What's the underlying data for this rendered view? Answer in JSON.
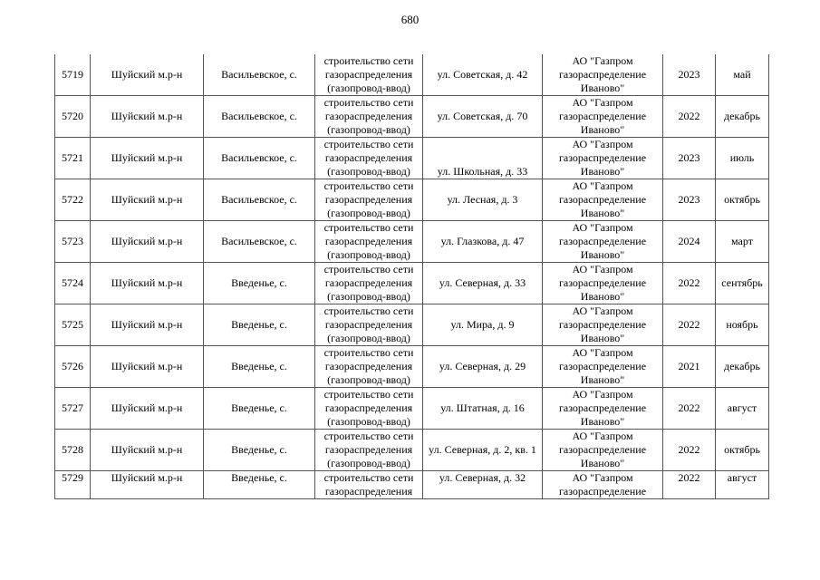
{
  "page_number": "680",
  "rows": [
    {
      "num": "5719",
      "district": "Шуйский м.р-н",
      "locality": "Васильевское, с.",
      "work": [
        "строительство сети",
        "газораспределения",
        "(газопровод-ввод)"
      ],
      "address": "ул. Советская, д. 42",
      "org": [
        "АО \"Газпром",
        "газораспределение",
        "Иваново\""
      ],
      "year": "2023",
      "month": "май"
    },
    {
      "num": "5720",
      "district": "Шуйский м.р-н",
      "locality": "Васильевское, с.",
      "work": [
        "строительство сети",
        "газораспределения",
        "(газопровод-ввод)"
      ],
      "address": "ул. Советская, д. 70",
      "org": [
        "АО \"Газпром",
        "газораспределение",
        "Иваново\""
      ],
      "year": "2022",
      "month": "декабрь"
    },
    {
      "num": "5721",
      "district": "Шуйский м.р-н",
      "locality": "Васильевское, с.",
      "work": [
        "строительство сети",
        "газораспределения",
        "(газопровод-ввод)"
      ],
      "address": "ул. Школьная, д. 33",
      "org": [
        "АО \"Газпром",
        "газораспределение",
        "Иваново\""
      ],
      "year": "2023",
      "month": "июль",
      "address_bottom": true
    },
    {
      "num": "5722",
      "district": "Шуйский м.р-н",
      "locality": "Васильевское, с.",
      "work": [
        "строительство сети",
        "газораспределения",
        "(газопровод-ввод)"
      ],
      "address": "ул. Лесная, д. 3",
      "org": [
        "АО \"Газпром",
        "газораспределение",
        "Иваново\""
      ],
      "year": "2023",
      "month": "октябрь"
    },
    {
      "num": "5723",
      "district": "Шуйский м.р-н",
      "locality": "Васильевское, с.",
      "work": [
        "строительство сети",
        "газораспределения",
        "(газопровод-ввод)"
      ],
      "address": "ул. Глазкова, д. 47",
      "org": [
        "АО \"Газпром",
        "газораспределение",
        "Иваново\""
      ],
      "year": "2024",
      "month": "март"
    },
    {
      "num": "5724",
      "district": "Шуйский м.р-н",
      "locality": "Введенье, с.",
      "work": [
        "строительство сети",
        "газораспределения",
        "(газопровод-ввод)"
      ],
      "address": "ул. Северная, д. 33",
      "org": [
        "АО \"Газпром",
        "газораспределение",
        "Иваново\""
      ],
      "year": "2022",
      "month": "сентябрь"
    },
    {
      "num": "5725",
      "district": "Шуйский м.р-н",
      "locality": "Введенье, с.",
      "work": [
        "строительство сети",
        "газораспределения",
        "(газопровод-ввод)"
      ],
      "address": "ул. Мира, д. 9",
      "org": [
        "АО \"Газпром",
        "газораспределение",
        "Иваново\""
      ],
      "year": "2022",
      "month": "ноябрь"
    },
    {
      "num": "5726",
      "district": "Шуйский м.р-н",
      "locality": "Введенье, с.",
      "work": [
        "строительство сети",
        "газораспределения",
        "(газопровод-ввод)"
      ],
      "address": "ул. Северная, д. 29",
      "org": [
        "АО \"Газпром",
        "газораспределение",
        "Иваново\""
      ],
      "year": "2021",
      "month": "декабрь"
    },
    {
      "num": "5727",
      "district": "Шуйский м.р-н",
      "locality": "Введенье, с.",
      "work": [
        "строительство сети",
        "газораспределения",
        "(газопровод-ввод)"
      ],
      "address": "ул. Штатная, д. 16",
      "org": [
        "АО \"Газпром",
        "газораспределение",
        "Иваново\""
      ],
      "year": "2022",
      "month": "август"
    },
    {
      "num": "5728",
      "district": "Шуйский м.р-н",
      "locality": "Введенье, с.",
      "work": [
        "строительство сети",
        "газораспределения",
        "(газопровод-ввод)"
      ],
      "address": "ул. Северная, д. 2, кв. 1",
      "org": [
        "АО \"Газпром",
        "газораспределение",
        "Иваново\""
      ],
      "year": "2022",
      "month": "октябрь"
    },
    {
      "num": "5729",
      "district": "Шуйский м.р-н",
      "locality": "Введенье, с.",
      "work": [
        "строительство сети",
        "газораспределения"
      ],
      "address": "ул. Северная, д. 32",
      "org": [
        "АО \"Газпром",
        "газораспределение"
      ],
      "year": "2022",
      "month": "август"
    }
  ]
}
